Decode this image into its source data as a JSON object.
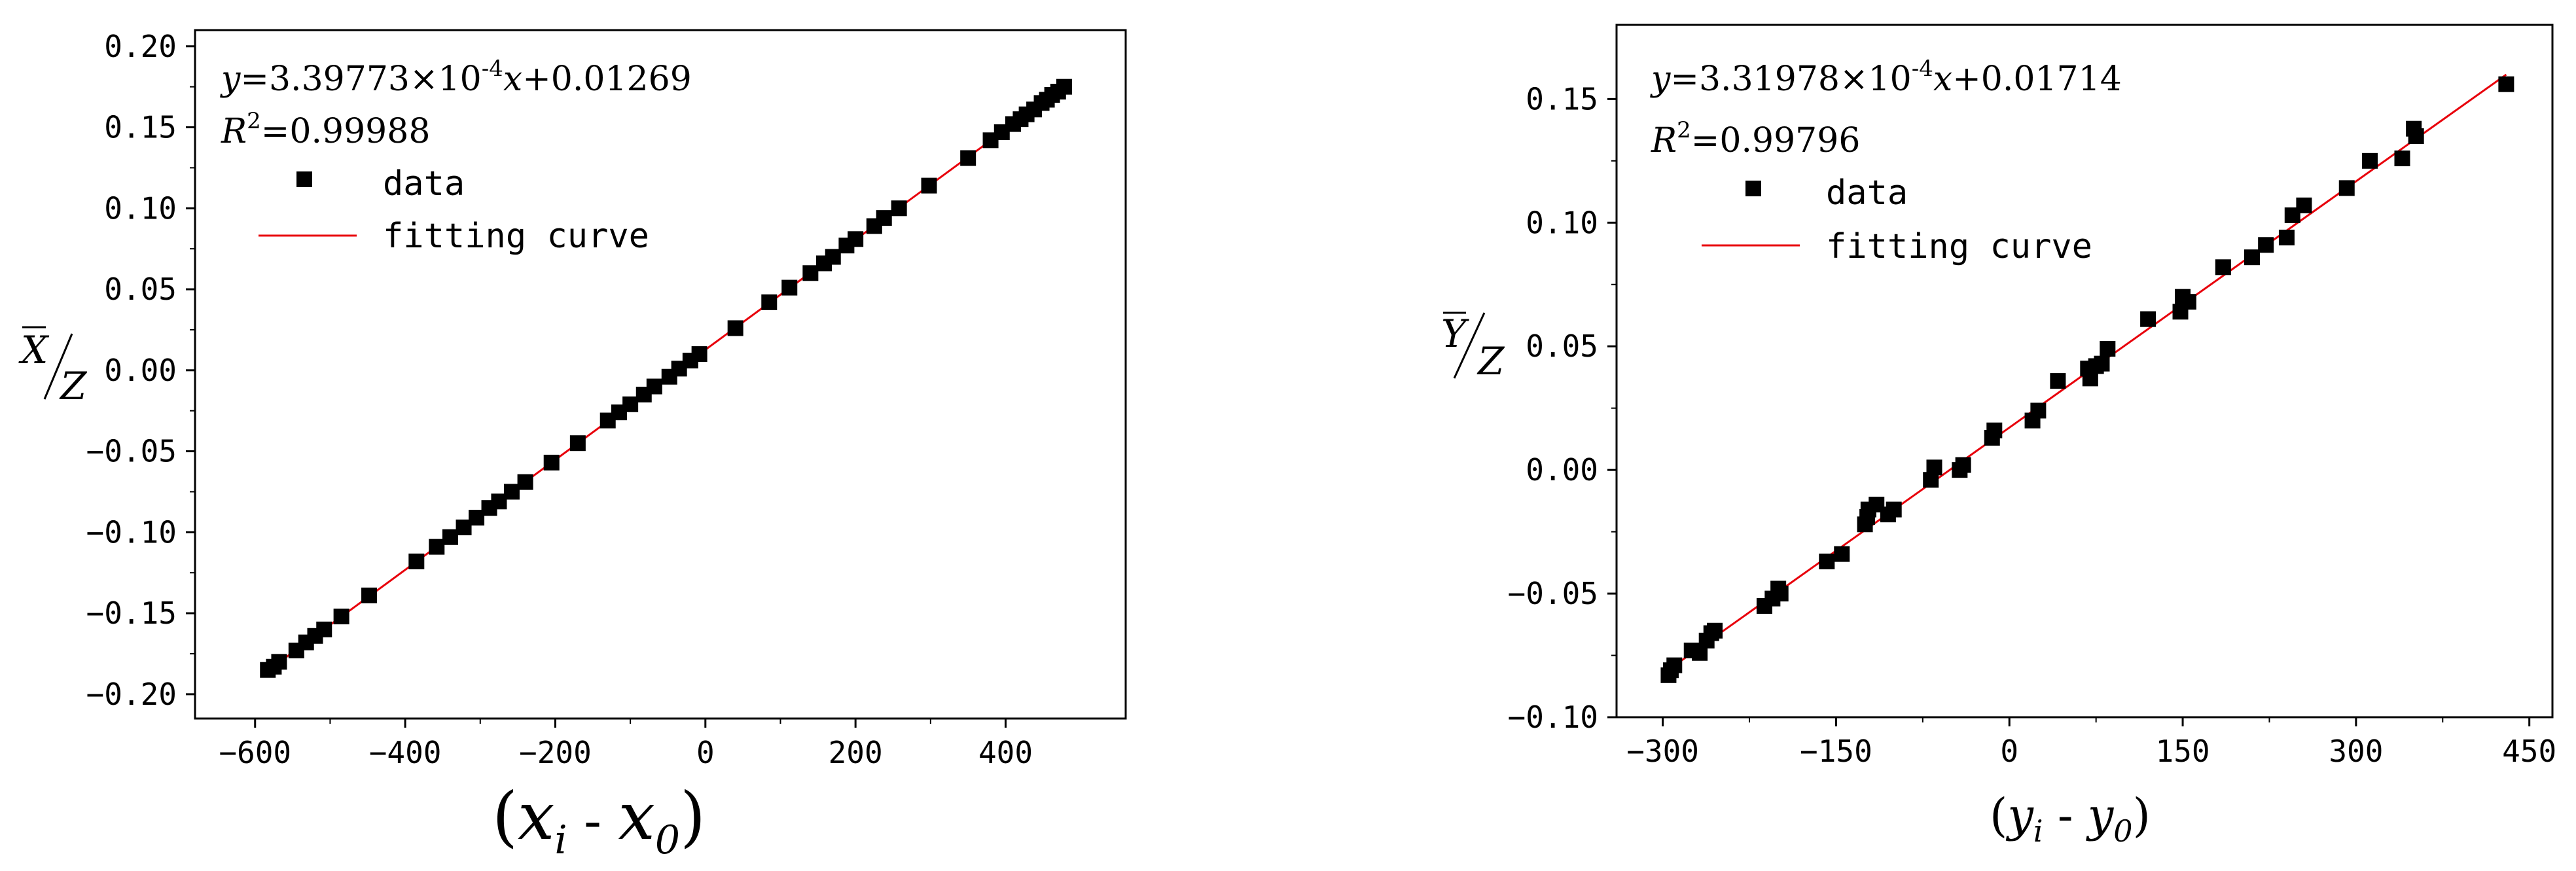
{
  "chart_data": [
    {
      "type": "scatter",
      "panel": "left",
      "equation": {
        "lhs": "y",
        "mid": "=3.39773×10",
        "exp": "-4",
        "var": "x",
        "rest": "+0.01269"
      },
      "r2": {
        "symbol": "R",
        "sup": "2",
        "value": "=0.99988"
      },
      "legend": {
        "data_label": "data",
        "fit_label": "fitting curve"
      },
      "ylabel": {
        "num": "X",
        "den": "Z"
      },
      "xlabel": {
        "open": "(",
        "a": "x",
        "a_sub": "i",
        "minus": " - ",
        "b": "x",
        "b_sub": "0",
        "close": ")"
      },
      "xlim": [
        -680,
        560
      ],
      "ylim": [
        -0.215,
        0.21
      ],
      "xticks": [
        -600,
        -400,
        -200,
        0,
        200,
        400
      ],
      "xtick_labels": [
        "−600",
        "−400",
        "−200",
        "0",
        "200",
        "400"
      ],
      "yticks": [
        -0.2,
        -0.15,
        -0.1,
        -0.05,
        0.0,
        0.05,
        0.1,
        0.15,
        0.2
      ],
      "ytick_labels": [
        "−0.20",
        "−0.15",
        "−0.10",
        "−0.05",
        "0.00",
        "0.05",
        "0.10",
        "0.15",
        "0.20"
      ],
      "fit": {
        "slope": 0.000339773,
        "intercept": 0.01269,
        "x_range": [
          -585,
          480
        ]
      },
      "x": [
        -583,
        -575,
        -568,
        -545,
        -532,
        -520,
        -508,
        -485,
        -448,
        -385,
        -358,
        -340,
        -322,
        -305,
        -288,
        -275,
        -258,
        -240,
        -205,
        -170,
        -130,
        -115,
        -100,
        -82,
        -68,
        -48,
        -35,
        -20,
        -8,
        40,
        85,
        112,
        140,
        158,
        170,
        188,
        200,
        225,
        238,
        258,
        298,
        350,
        380,
        395,
        410,
        420,
        428,
        438,
        448,
        455,
        462,
        470,
        478
      ],
      "y": [
        -0.185,
        -0.183,
        -0.18,
        -0.173,
        -0.168,
        -0.164,
        -0.16,
        -0.152,
        -0.139,
        -0.118,
        -0.109,
        -0.103,
        -0.097,
        -0.091,
        -0.085,
        -0.081,
        -0.075,
        -0.069,
        -0.057,
        -0.045,
        -0.031,
        -0.026,
        -0.021,
        -0.015,
        -0.01,
        -0.004,
        0.001,
        0.006,
        0.01,
        0.026,
        0.042,
        0.051,
        0.06,
        0.066,
        0.07,
        0.077,
        0.081,
        0.089,
        0.094,
        0.1,
        0.114,
        0.131,
        0.142,
        0.147,
        0.152,
        0.155,
        0.158,
        0.161,
        0.165,
        0.167,
        0.17,
        0.172,
        0.175
      ]
    },
    {
      "type": "scatter",
      "panel": "right",
      "equation": {
        "lhs": "y",
        "mid": "=3.31978×10",
        "exp": "-4",
        "var": "x",
        "rest": "+0.01714"
      },
      "r2": {
        "symbol": "R",
        "sup": "2",
        "value": "=0.99796"
      },
      "legend": {
        "data_label": "data",
        "fit_label": "fitting curve"
      },
      "ylabel": {
        "num": "Y",
        "den": "Z"
      },
      "xlabel": {
        "open": "(",
        "a": "y",
        "a_sub": "i",
        "minus": " - ",
        "b": "y",
        "b_sub": "0",
        "close": ")"
      },
      "xlim": [
        -340,
        470
      ],
      "ylim": [
        -0.1,
        0.18
      ],
      "xticks": [
        -300,
        -150,
        0,
        150,
        300,
        450
      ],
      "xtick_labels": [
        "−300",
        "−150",
        "0",
        "150",
        "300",
        "450"
      ],
      "yticks": [
        -0.1,
        -0.05,
        0.0,
        0.05,
        0.1,
        0.15
      ],
      "ytick_labels": [
        "−0.10",
        "−0.05",
        "0.00",
        "0.05",
        "0.10",
        "0.15"
      ],
      "fit": {
        "slope": 0.000331978,
        "intercept": 0.01714,
        "x_range": [
          -295,
          430
        ]
      },
      "x": [
        -295,
        -293,
        -290,
        -275,
        -268,
        -262,
        -258,
        -255,
        -212,
        -205,
        -200,
        -198,
        -158,
        -145,
        -125,
        -123,
        -122,
        -115,
        -105,
        -100,
        -68,
        -65,
        -43,
        -40,
        -15,
        -13,
        20,
        25,
        42,
        68,
        70,
        75,
        80,
        85,
        120,
        148,
        150,
        155,
        185,
        210,
        222,
        240,
        245,
        255,
        292,
        312,
        340,
        350,
        352,
        430
      ],
      "y": [
        -0.083,
        -0.081,
        -0.079,
        -0.073,
        -0.074,
        -0.069,
        -0.066,
        -0.065,
        -0.055,
        -0.052,
        -0.048,
        -0.05,
        -0.037,
        -0.034,
        -0.022,
        -0.019,
        -0.016,
        -0.014,
        -0.018,
        -0.016,
        -0.004,
        0.001,
        0.0,
        0.002,
        0.013,
        0.016,
        0.02,
        0.024,
        0.036,
        0.041,
        0.037,
        0.042,
        0.043,
        0.049,
        0.061,
        0.064,
        0.07,
        0.068,
        0.082,
        0.086,
        0.091,
        0.094,
        0.103,
        0.107,
        0.114,
        0.125,
        0.126,
        0.138,
        0.135,
        0.156
      ]
    }
  ]
}
